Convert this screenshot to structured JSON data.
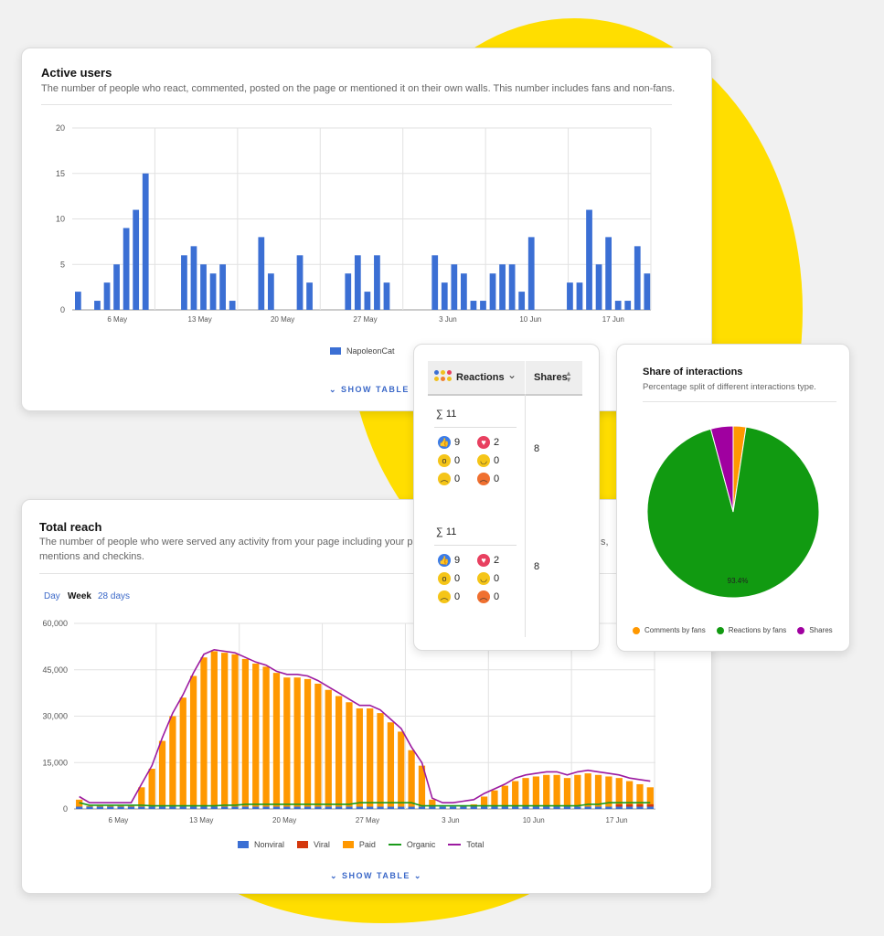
{
  "active_users": {
    "title": "Active users",
    "description": "The number of people who react, commented, posted on the page or mentioned it on their own walls. This number includes fans and non-fans.",
    "show_table": "SHOW TABLE",
    "chart_data": {
      "type": "bar",
      "ylim": [
        0,
        20
      ],
      "yticks": [
        0,
        5,
        10,
        15,
        20
      ],
      "xtick_labels": [
        "6 May",
        "13 May",
        "20 May",
        "27 May",
        "3 Jun",
        "10 Jun",
        "17 Jun"
      ],
      "series": [
        {
          "name": "NapoleonCat",
          "color": "#3b6fd4",
          "values": [
            2,
            0,
            1,
            3,
            5,
            9,
            11,
            15,
            0,
            0,
            0,
            6,
            7,
            5,
            4,
            5,
            1,
            0,
            0,
            8,
            4,
            0,
            0,
            6,
            3,
            0,
            0,
            0,
            4,
            6,
            2,
            6,
            3,
            0,
            0,
            0,
            0,
            6,
            3,
            5,
            4,
            1,
            1,
            4,
            5,
            5,
            2,
            8,
            0,
            0,
            0,
            3,
            3,
            11,
            5,
            8,
            1,
            1,
            7,
            4
          ]
        }
      ]
    }
  },
  "reactions_table": {
    "reactions_header": "Reactions",
    "shares_header": "Shares",
    "rows": [
      {
        "total": "∑ 11",
        "like": "9",
        "love": "2",
        "wow": "0",
        "haha": "0",
        "sad": "0",
        "angry": "0",
        "shares": "8"
      },
      {
        "total": "∑ 11",
        "like": "9",
        "love": "2",
        "wow": "0",
        "haha": "0",
        "sad": "0",
        "angry": "0",
        "shares": "8"
      }
    ]
  },
  "share_of_interactions": {
    "title": "Share of interactions",
    "description": "Percentage split of different interactions type.",
    "chart_data": {
      "type": "pie",
      "slices": [
        {
          "label": "Comments by fans",
          "value": 2.4,
          "color": "#ff9800"
        },
        {
          "label": "Reactions by fans",
          "value": 93.4,
          "color": "#119a11"
        },
        {
          "label": "Shares",
          "value": 4.2,
          "color": "#a000a0"
        }
      ],
      "data_labels": [
        "93.4%"
      ]
    }
  },
  "total_reach": {
    "title": "Total reach",
    "description_line1": "The number of people who were served any activity from your page including your posts, po",
    "description_line1_tail": "s,",
    "description_line2": "mentions and checkins.",
    "periods": [
      "Day",
      "Week",
      "28 days"
    ],
    "active_period": "Week",
    "show_table": "SHOW TABLE",
    "chart_data": {
      "type": "bar",
      "ylim": [
        0,
        60000
      ],
      "yticks": [
        "0",
        "15,000",
        "30,000",
        "45,000",
        "60,000"
      ],
      "xtick_labels": [
        "6 May",
        "13 May",
        "20 May",
        "27 May",
        "3 Jun",
        "10 Jun",
        "17 Jun"
      ],
      "legend": [
        {
          "name": "Nonviral",
          "color": "#3b6fd4",
          "kind": "bar"
        },
        {
          "name": "Viral",
          "color": "#d4380d",
          "kind": "bar"
        },
        {
          "name": "Paid",
          "color": "#ff9800",
          "kind": "bar"
        },
        {
          "name": "Organic",
          "color": "#1a9a1a",
          "kind": "line"
        },
        {
          "name": "Total",
          "color": "#9c1aa0",
          "kind": "line"
        }
      ],
      "paid": [
        3000,
        1000,
        1000,
        1000,
        1000,
        1000,
        7000,
        13000,
        22000,
        30000,
        36000,
        43000,
        49000,
        51000,
        50500,
        50000,
        48500,
        47000,
        46000,
        44000,
        42500,
        42500,
        42000,
        40500,
        38500,
        36500,
        34500,
        32500,
        32500,
        31000,
        28000,
        25000,
        19000,
        14000,
        3000,
        500,
        500,
        1000,
        1500,
        4000,
        6000,
        7500,
        9000,
        10000,
        10500,
        11000,
        11000,
        10000,
        11000,
        11500,
        11000,
        10500,
        10000,
        9000,
        8000,
        7000
      ],
      "total": [
        4000,
        2000,
        2000,
        2000,
        2000,
        2000,
        8000,
        14000,
        23000,
        31000,
        37000,
        44000,
        50000,
        51500,
        51000,
        50500,
        49000,
        47500,
        46500,
        44500,
        43500,
        43500,
        43000,
        41500,
        39500,
        37500,
        35500,
        33500,
        33500,
        32000,
        29000,
        26000,
        20000,
        15000,
        3500,
        2000,
        2000,
        2500,
        3000,
        5000,
        6500,
        8000,
        10000,
        11000,
        11500,
        12000,
        12000,
        11000,
        12000,
        12500,
        12000,
        11500,
        11000,
        10000,
        9500,
        9000
      ],
      "organic": [
        2000,
        1200,
        1200,
        1200,
        1200,
        1200,
        1200,
        1000,
        1000,
        1000,
        1000,
        1000,
        1000,
        1000,
        1200,
        1200,
        1500,
        1500,
        1500,
        1500,
        1500,
        1500,
        1500,
        1500,
        1500,
        1500,
        1500,
        2000,
        2000,
        2000,
        2000,
        2000,
        2000,
        1000,
        1000,
        1000,
        1000,
        1000,
        1000,
        1000,
        1000,
        1000,
        1000,
        1000,
        1000,
        1000,
        1000,
        1000,
        1000,
        1500,
        1500,
        2000,
        2000,
        2000,
        2000,
        2000
      ],
      "viral": [
        0,
        0,
        0,
        0,
        0,
        0,
        0,
        0,
        0,
        0,
        0,
        0,
        0,
        0,
        0,
        0,
        0,
        0,
        0,
        0,
        0,
        0,
        0,
        0,
        0,
        0,
        0,
        0,
        0,
        0,
        0,
        0,
        0,
        0,
        0,
        0,
        0,
        0,
        0,
        0,
        0,
        0,
        0,
        0,
        0,
        0,
        0,
        0,
        0,
        0,
        0,
        0,
        1500,
        1500,
        1500,
        1500
      ]
    }
  },
  "colors": {
    "accent": "#3b68c8",
    "blob": "#ffde00"
  }
}
